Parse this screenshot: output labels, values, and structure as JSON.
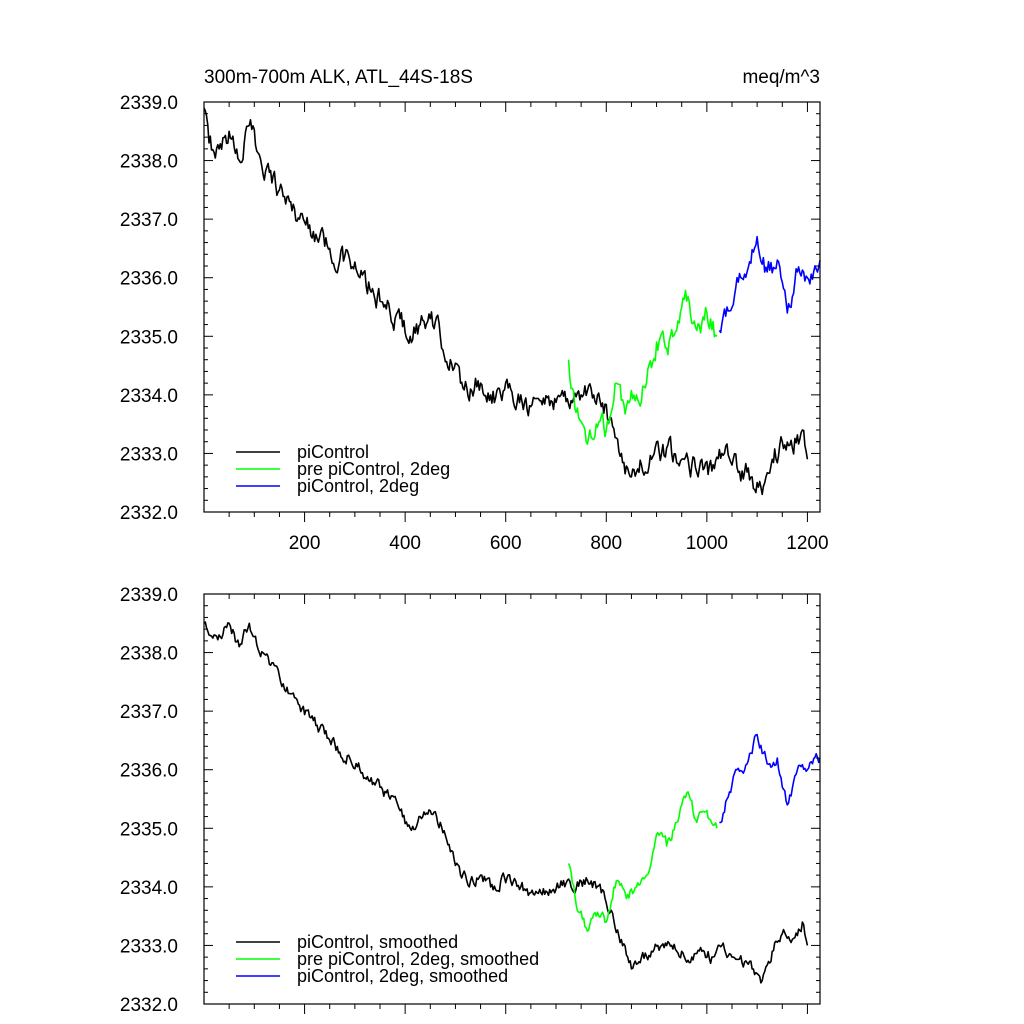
{
  "chart_data": [
    {
      "type": "line",
      "title": "300m-700m ALK, ATL_44S-18S",
      "units": "meq/m^3",
      "xlim": [
        0,
        1225
      ],
      "ylim": [
        2332.0,
        2339.0
      ],
      "x_ticks": [
        200,
        400,
        600,
        800,
        1000,
        1200
      ],
      "x_tick_labels": [
        "200",
        "400",
        "600",
        "800",
        "1000",
        "1200"
      ],
      "y_ticks": [
        2332.0,
        2333.0,
        2334.0,
        2335.0,
        2336.0,
        2337.0,
        2338.0,
        2339.0
      ],
      "y_tick_labels": [
        "2332.0",
        "2333.0",
        "2334.0",
        "2335.0",
        "2336.0",
        "2337.0",
        "2338.0",
        "2339.0"
      ],
      "legend_position": "bottom-left",
      "series": [
        {
          "name": "piControl",
          "color": "#000000",
          "x": [
            0,
            10,
            30,
            50,
            70,
            90,
            110,
            130,
            150,
            170,
            190,
            210,
            230,
            250,
            270,
            290,
            310,
            330,
            350,
            370,
            390,
            410,
            430,
            450,
            470,
            490,
            510,
            530,
            550,
            570,
            590,
            610,
            630,
            650,
            670,
            690,
            710,
            730,
            750,
            770,
            790,
            810,
            830,
            850,
            870,
            890,
            910,
            930,
            950,
            970,
            990,
            1010,
            1030,
            1050,
            1070,
            1090,
            1110,
            1130,
            1150,
            1170,
            1190,
            1200
          ],
          "y": [
            2338.9,
            2338.3,
            2338.2,
            2338.5,
            2338.0,
            2338.6,
            2338.1,
            2337.8,
            2337.5,
            2337.3,
            2337.0,
            2336.9,
            2336.7,
            2336.5,
            2336.3,
            2336.3,
            2336.0,
            2335.8,
            2335.6,
            2335.4,
            2335.3,
            2335.0,
            2335.2,
            2335.3,
            2335.0,
            2334.6,
            2334.2,
            2334.1,
            2334.2,
            2334.0,
            2334.0,
            2334.1,
            2334.0,
            2333.8,
            2333.9,
            2333.9,
            2334.0,
            2333.9,
            2334.0,
            2334.1,
            2333.8,
            2333.6,
            2333.0,
            2332.6,
            2332.8,
            2332.9,
            2333.0,
            2333.0,
            2332.9,
            2332.8,
            2332.9,
            2332.7,
            2333.0,
            2332.8,
            2332.7,
            2332.6,
            2332.3,
            2332.9,
            2333.2,
            2333.1,
            2333.4,
            2332.9
          ]
        },
        {
          "name": "pre piControl, 2deg",
          "color": "#00ff00",
          "x": [
            725,
            740,
            760,
            780,
            800,
            820,
            840,
            860,
            880,
            900,
            920,
            940,
            960,
            980,
            1000,
            1020
          ],
          "y": [
            2334.6,
            2333.7,
            2333.2,
            2333.5,
            2333.4,
            2334.2,
            2333.8,
            2334.0,
            2334.2,
            2334.9,
            2334.8,
            2335.1,
            2335.6,
            2335.1,
            2335.4,
            2335.0
          ]
        },
        {
          "name": "piControl, 2deg",
          "color": "#0000ff",
          "x": [
            1025,
            1040,
            1060,
            1080,
            1100,
            1120,
            1140,
            1160,
            1180,
            1200,
            1225
          ],
          "y": [
            2335.1,
            2335.5,
            2336.0,
            2336.1,
            2336.7,
            2336.1,
            2336.3,
            2335.4,
            2336.1,
            2336.0,
            2336.3
          ]
        }
      ]
    },
    {
      "type": "line",
      "title": "",
      "xlim": [
        0,
        1225
      ],
      "ylim": [
        2332.0,
        2339.0
      ],
      "y_ticks": [
        2332.0,
        2333.0,
        2334.0,
        2335.0,
        2336.0,
        2337.0,
        2338.0,
        2339.0
      ],
      "y_tick_labels": [
        "2332.0",
        "2333.0",
        "2334.0",
        "2335.0",
        "2336.0",
        "2337.0",
        "2338.0",
        "2339.0"
      ],
      "legend_position": "bottom-left",
      "series": [
        {
          "name": "piControl, smoothed",
          "color": "#000000",
          "x": [
            0,
            10,
            30,
            50,
            70,
            90,
            110,
            130,
            150,
            170,
            190,
            210,
            230,
            250,
            270,
            290,
            310,
            330,
            350,
            370,
            390,
            410,
            430,
            450,
            470,
            490,
            510,
            530,
            550,
            570,
            590,
            610,
            630,
            650,
            670,
            690,
            710,
            730,
            750,
            770,
            790,
            810,
            830,
            850,
            870,
            890,
            910,
            930,
            950,
            970,
            990,
            1010,
            1030,
            1050,
            1070,
            1090,
            1110,
            1130,
            1150,
            1170,
            1190,
            1200
          ],
          "y": [
            2338.5,
            2338.3,
            2338.3,
            2338.5,
            2338.1,
            2338.5,
            2338.0,
            2337.8,
            2337.6,
            2337.3,
            2337.1,
            2336.9,
            2336.7,
            2336.5,
            2336.3,
            2336.2,
            2336.0,
            2335.8,
            2335.7,
            2335.5,
            2335.3,
            2335.0,
            2335.2,
            2335.3,
            2335.1,
            2334.6,
            2334.2,
            2334.1,
            2334.2,
            2334.0,
            2334.1,
            2334.1,
            2334.0,
            2333.9,
            2333.9,
            2333.9,
            2334.1,
            2334.0,
            2334.1,
            2334.1,
            2333.9,
            2333.6,
            2333.1,
            2332.6,
            2332.8,
            2332.9,
            2333.0,
            2333.0,
            2332.9,
            2332.8,
            2332.9,
            2332.8,
            2333.0,
            2332.8,
            2332.7,
            2332.6,
            2332.4,
            2332.9,
            2333.2,
            2333.1,
            2333.4,
            2333.0
          ]
        },
        {
          "name": "pre piControl, 2deg, smoothed",
          "color": "#00ff00",
          "x": [
            725,
            740,
            760,
            780,
            800,
            820,
            840,
            860,
            880,
            900,
            920,
            940,
            960,
            980,
            1000,
            1020
          ],
          "y": [
            2334.4,
            2333.7,
            2333.3,
            2333.5,
            2333.4,
            2334.1,
            2333.8,
            2334.0,
            2334.2,
            2334.9,
            2334.7,
            2335.1,
            2335.6,
            2335.1,
            2335.3,
            2335.0
          ]
        },
        {
          "name": "piControl, 2deg, smoothed",
          "color": "#0000ff",
          "x": [
            1025,
            1040,
            1060,
            1080,
            1100,
            1120,
            1140,
            1160,
            1180,
            1200,
            1225
          ],
          "y": [
            2335.1,
            2335.5,
            2336.0,
            2336.1,
            2336.6,
            2336.1,
            2336.2,
            2335.4,
            2336.0,
            2336.0,
            2336.2
          ]
        }
      ]
    }
  ]
}
